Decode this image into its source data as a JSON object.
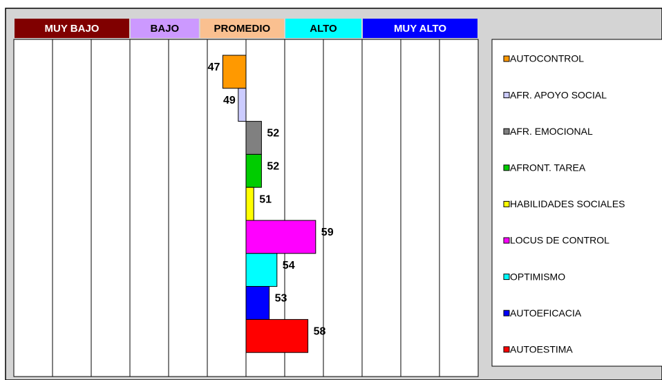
{
  "chart_data": {
    "type": "bar",
    "orientation": "horizontal",
    "base": 50,
    "xlim": [
      20,
      80
    ],
    "xticks": [
      20,
      25,
      30,
      35,
      40,
      45,
      50,
      55,
      60,
      65,
      70,
      75,
      80
    ],
    "grid": true,
    "legend": "right",
    "bands": [
      {
        "name": "MUY BAJO",
        "from": 20,
        "to": 35,
        "color": "#800000",
        "text_color": "#ffffff"
      },
      {
        "name": "BAJO",
        "from": 35,
        "to": 44,
        "color": "#cc99ff",
        "text_color": "#000000"
      },
      {
        "name": "PROMEDIO",
        "from": 44,
        "to": 55,
        "color": "#fac090",
        "text_color": "#000000"
      },
      {
        "name": "ALTO",
        "from": 55,
        "to": 65,
        "color": "#00ffff",
        "text_color": "#000000"
      },
      {
        "name": "MUY ALTO",
        "from": 65,
        "to": 80,
        "color": "#0000ff",
        "text_color": "#ffffff"
      }
    ],
    "categories": [
      "AUTOCONTROL",
      "AFR. APOYO SOCIAL",
      "AFR. EMOCIONAL",
      "AFRONT. TAREA",
      "HABILIDADES SOCIALES",
      "LOCUS DE CONTROL",
      "OPTIMISMO",
      "AUTOEFICACIA",
      "AUTOESTIMA"
    ],
    "values": [
      47,
      49,
      52,
      52,
      51,
      59,
      54,
      53,
      58
    ],
    "colors": [
      "#ff9900",
      "#ccccff",
      "#808080",
      "#00cc00",
      "#ffff00",
      "#ff00ff",
      "#00ffff",
      "#0000ff",
      "#ff0000"
    ]
  }
}
